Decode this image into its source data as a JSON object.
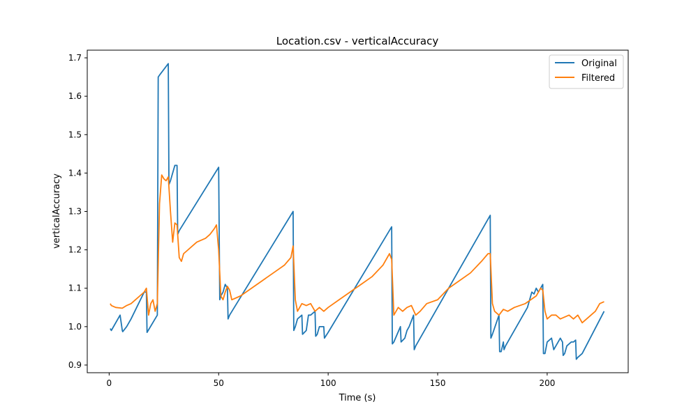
{
  "chart_data": {
    "type": "line",
    "title": "Location.csv - verticalAccuracy",
    "xlabel": "Time (s)",
    "ylabel": "verticalAccuracy",
    "xlim": [
      -10,
      237
    ],
    "ylim": [
      0.88,
      1.72
    ],
    "xticks": [
      0,
      50,
      100,
      150,
      200
    ],
    "yticks": [
      0.9,
      1.0,
      1.1,
      1.2,
      1.3,
      1.4,
      1.5,
      1.6,
      1.7
    ],
    "grid": false,
    "legend_position": "top-right",
    "series": [
      {
        "name": "Original",
        "color": "#1f77b4",
        "x": [
          0.5,
          1,
          5,
          6,
          6.2,
          8,
          10,
          16,
          17,
          17.3,
          22,
          22.4,
          23,
          27,
          27.3,
          28,
          28.5,
          30,
          31,
          31.3,
          32,
          50,
          50.5,
          51,
          52,
          52.5,
          53,
          54,
          54.3,
          55,
          84,
          84.3,
          85,
          86,
          88,
          88.3,
          90,
          91,
          92,
          94,
          94.3,
          95,
          96,
          97,
          98,
          98.3,
          100,
          129,
          129.3,
          130,
          133,
          133.3,
          135,
          136,
          137,
          139,
          139.3,
          140,
          174,
          174.3,
          175,
          178,
          178.3,
          179,
          180,
          180.3,
          181,
          191,
          193,
          194,
          195,
          196,
          197,
          198,
          198.3,
          199,
          200,
          202,
          203,
          204,
          205,
          206,
          207,
          207.3,
          208,
          209,
          210,
          211,
          212,
          213,
          213.3,
          214,
          216,
          226
        ],
        "y": [
          0.995,
          0.99,
          1.03,
          0.99,
          0.987,
          1.0,
          1.02,
          1.09,
          1.09,
          0.985,
          1.03,
          1.65,
          1.655,
          1.685,
          1.37,
          1.38,
          1.39,
          1.42,
          1.42,
          1.24,
          1.25,
          1.415,
          1.07,
          1.08,
          1.09,
          1.1,
          1.11,
          1.1,
          1.02,
          1.03,
          1.3,
          0.99,
          1.0,
          1.02,
          1.03,
          0.98,
          0.99,
          1.03,
          1.03,
          1.04,
          0.975,
          0.98,
          1.0,
          1.0,
          1.0,
          0.97,
          0.985,
          1.26,
          0.955,
          0.96,
          1.0,
          0.96,
          0.97,
          0.99,
          1.0,
          1.03,
          0.94,
          0.95,
          1.29,
          0.97,
          0.98,
          1.03,
          0.935,
          0.935,
          0.96,
          0.94,
          0.95,
          1.05,
          1.09,
          1.085,
          1.1,
          1.09,
          1.1,
          1.11,
          0.93,
          0.93,
          0.96,
          0.97,
          0.94,
          0.95,
          0.96,
          0.97,
          0.96,
          0.925,
          0.93,
          0.95,
          0.955,
          0.96,
          0.96,
          0.965,
          0.915,
          0.92,
          0.93,
          1.04
        ]
      },
      {
        "name": "Filtered",
        "color": "#ff7f0e",
        "x": [
          0.5,
          1,
          3,
          6,
          8,
          10,
          12,
          14,
          16,
          17,
          18,
          19,
          20,
          21,
          22,
          23,
          24,
          25,
          26,
          27,
          28,
          29,
          30,
          31,
          32,
          33,
          34,
          36,
          38,
          40,
          42,
          44,
          46,
          48,
          49,
          50,
          51,
          52,
          53,
          54,
          55,
          56,
          60,
          65,
          70,
          75,
          80,
          83,
          84,
          85,
          86,
          88,
          90,
          92,
          94,
          96,
          98,
          100,
          105,
          110,
          115,
          120,
          125,
          128,
          129,
          130,
          131,
          132,
          134,
          136,
          138,
          140,
          142,
          145,
          150,
          155,
          160,
          165,
          170,
          173,
          174,
          175,
          176,
          178,
          180,
          182,
          185,
          190,
          195,
          197,
          198,
          199,
          200,
          202,
          204,
          206,
          208,
          210,
          212,
          214,
          216,
          218,
          220,
          222,
          224,
          226
        ],
        "y": [
          1.06,
          1.055,
          1.05,
          1.048,
          1.055,
          1.06,
          1.07,
          1.08,
          1.09,
          1.1,
          1.03,
          1.06,
          1.07,
          1.04,
          1.06,
          1.32,
          1.395,
          1.385,
          1.38,
          1.39,
          1.3,
          1.22,
          1.27,
          1.265,
          1.18,
          1.17,
          1.19,
          1.2,
          1.21,
          1.22,
          1.225,
          1.23,
          1.24,
          1.255,
          1.265,
          1.2,
          1.08,
          1.07,
          1.09,
          1.105,
          1.095,
          1.07,
          1.08,
          1.1,
          1.12,
          1.14,
          1.16,
          1.18,
          1.21,
          1.07,
          1.04,
          1.06,
          1.055,
          1.06,
          1.04,
          1.05,
          1.04,
          1.05,
          1.07,
          1.09,
          1.11,
          1.13,
          1.16,
          1.19,
          1.175,
          1.03,
          1.04,
          1.05,
          1.04,
          1.05,
          1.055,
          1.03,
          1.04,
          1.06,
          1.07,
          1.1,
          1.12,
          1.14,
          1.17,
          1.19,
          1.19,
          1.06,
          1.04,
          1.03,
          1.045,
          1.04,
          1.05,
          1.06,
          1.08,
          1.1,
          1.095,
          1.04,
          1.02,
          1.03,
          1.03,
          1.02,
          1.025,
          1.03,
          1.02,
          1.03,
          1.01,
          1.02,
          1.03,
          1.04,
          1.06,
          1.065
        ]
      }
    ]
  }
}
